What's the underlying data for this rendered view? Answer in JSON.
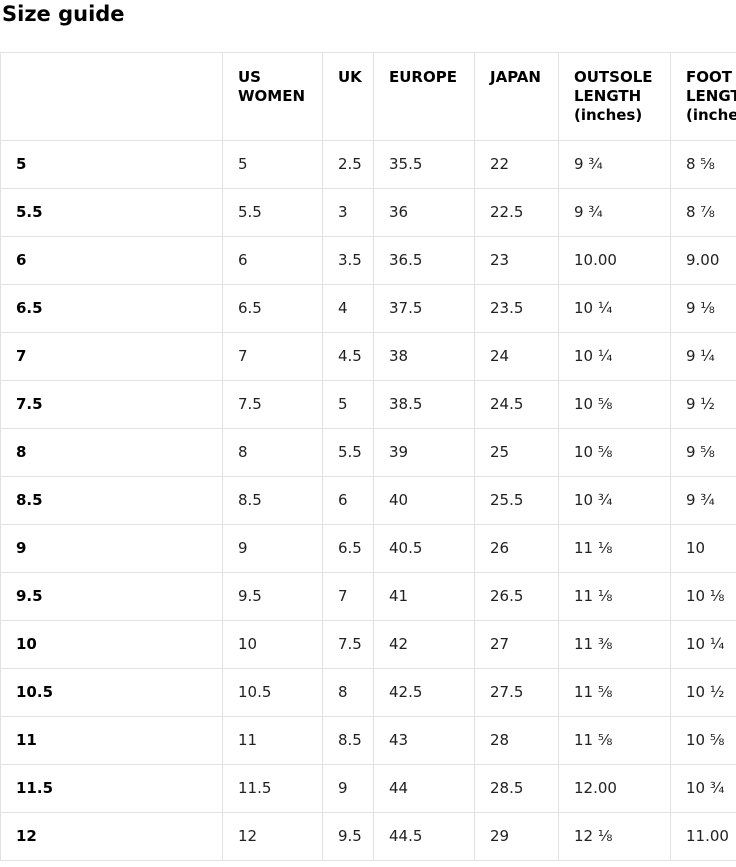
{
  "page": {
    "title": "Size guide"
  },
  "size_table": {
    "column_keys": [
      "row-label",
      "us-women",
      "uk",
      "europe",
      "japan",
      "outsole-length-inches",
      "foot-length-inches"
    ],
    "columns": [
      "",
      "US WOMEN",
      "UK",
      "EUROPE",
      "JAPAN",
      "OUTSOLE LENGTH (inches)",
      "FOOT LENGTH (inches)"
    ],
    "rows": [
      [
        "5",
        "5",
        "2.5",
        "35.5",
        "22",
        "9 ¾",
        "8 ⅝"
      ],
      [
        "5.5",
        "5.5",
        "3",
        "36",
        "22.5",
        "9 ¾",
        "8 ⅞"
      ],
      [
        "6",
        "6",
        "3.5",
        "36.5",
        "23",
        "10.00",
        "9.00"
      ],
      [
        "6.5",
        "6.5",
        "4",
        "37.5",
        "23.5",
        "10 ¼",
        "9 ⅛"
      ],
      [
        "7",
        "7",
        "4.5",
        "38",
        "24",
        "10 ¼",
        "9 ¼"
      ],
      [
        "7.5",
        "7.5",
        "5",
        "38.5",
        "24.5",
        "10 ⅝",
        "9 ½"
      ],
      [
        "8",
        "8",
        "5.5",
        "39",
        "25",
        "10 ⅝",
        "9 ⅝"
      ],
      [
        "8.5",
        "8.5",
        "6",
        "40",
        "25.5",
        "10 ¾",
        "9 ¾"
      ],
      [
        "9",
        "9",
        "6.5",
        "40.5",
        "26",
        "11 ⅛",
        "10"
      ],
      [
        "9.5",
        "9.5",
        "7",
        "41",
        "26.5",
        "11 ⅛",
        "10 ⅛"
      ],
      [
        "10",
        "10",
        "7.5",
        "42",
        "27",
        "11 ⅜",
        "10 ¼"
      ],
      [
        "10.5",
        "10.5",
        "8",
        "42.5",
        "27.5",
        "11 ⅝",
        "10 ½"
      ],
      [
        "11",
        "11",
        "8.5",
        "43",
        "28",
        "11 ⅝",
        "10 ⅝"
      ],
      [
        "11.5",
        "11.5",
        "9",
        "44",
        "28.5",
        "12.00",
        "10 ¾"
      ],
      [
        "12",
        "12",
        "9.5",
        "44.5",
        "29",
        "12 ⅛",
        "11.00"
      ]
    ]
  },
  "colors": {
    "background": "#ffffff",
    "table_border": "#e2e2e2",
    "body_text": "#202122",
    "heading_text": "#000000"
  }
}
